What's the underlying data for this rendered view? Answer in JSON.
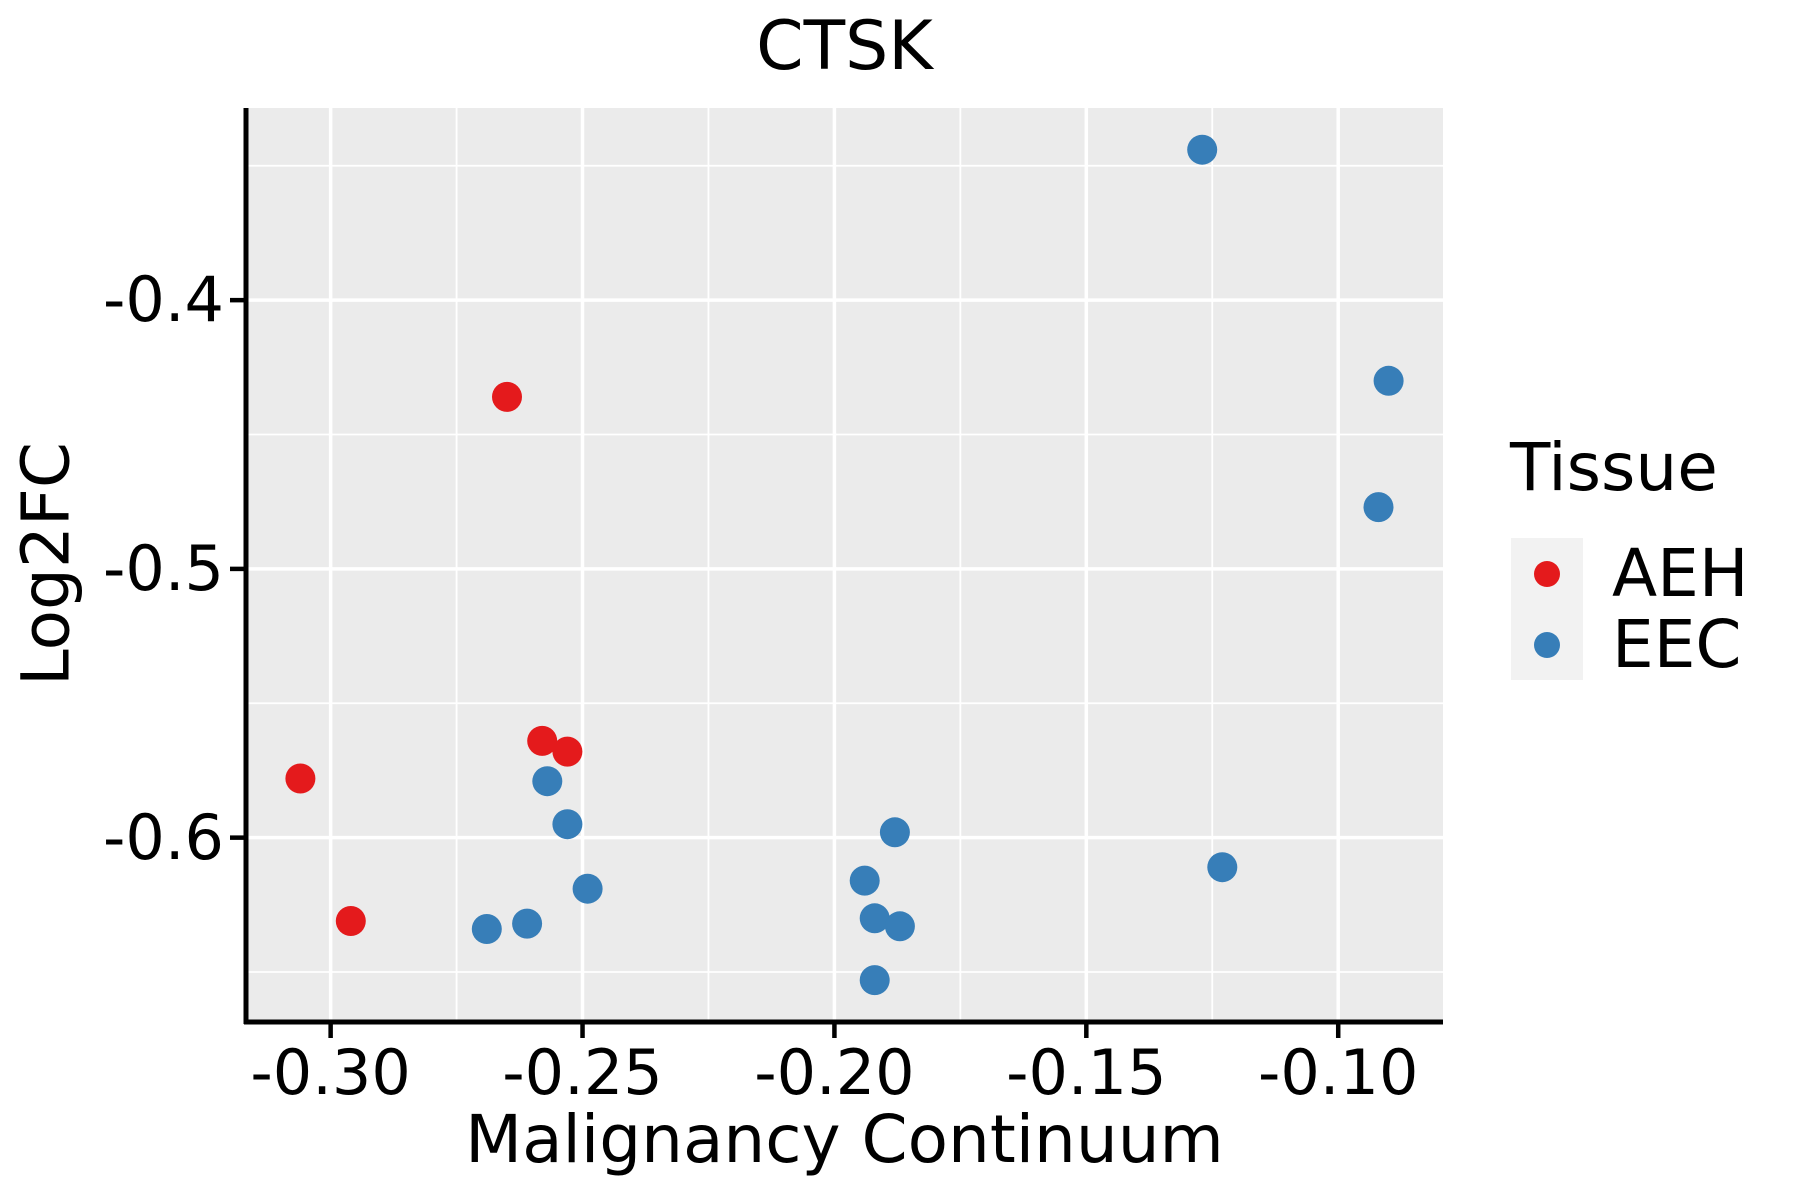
{
  "title": "CTSK",
  "x_axis": {
    "label": "Malignancy Continuum",
    "tick_labels": [
      "-0.30",
      "-0.25",
      "-0.20",
      "-0.15",
      "-0.10"
    ],
    "tick_values": [
      -0.3,
      -0.25,
      -0.2,
      -0.15,
      -0.1
    ],
    "minor_tick_values": [
      -0.275,
      -0.225,
      -0.175,
      -0.125
    ],
    "range": [
      -0.3168,
      -0.0792
    ]
  },
  "y_axis": {
    "label": "Log2FC",
    "tick_labels": [
      "-0.4",
      "-0.5",
      "-0.6"
    ],
    "tick_values": [
      -0.4,
      -0.5,
      -0.6
    ],
    "minor_tick_values": [
      -0.35,
      -0.45,
      -0.55,
      -0.65
    ],
    "range": [
      -0.6686,
      -0.3285
    ]
  },
  "legend": {
    "title": "Tissue",
    "entries": [
      {
        "label": "AEH",
        "color": "#E41A1C"
      },
      {
        "label": "EEC",
        "color": "#377EB8"
      }
    ]
  },
  "colors": {
    "panel_background": "#EBEBEB",
    "grid": "#FFFFFF",
    "axis_line": "#000000",
    "legend_key_background": "#F2F2F2",
    "text": "#000000",
    "page_background": "#FFFFFF"
  },
  "chart_data": {
    "type": "scatter",
    "title": "CTSK",
    "xlabel": "Malignancy Continuum",
    "ylabel": "Log2FC",
    "xlim": [
      -0.3168,
      -0.0792
    ],
    "ylim": [
      -0.6686,
      -0.3285
    ],
    "x_major_breaks": [
      -0.3,
      -0.25,
      -0.2,
      -0.15,
      -0.1
    ],
    "x_minor_breaks": [
      -0.275,
      -0.225,
      -0.175,
      -0.125
    ],
    "y_major_breaks": [
      -0.4,
      -0.5,
      -0.6
    ],
    "y_minor_breaks": [
      -0.35,
      -0.45,
      -0.55,
      -0.65
    ],
    "grid": true,
    "legend_position": "right",
    "legend_title": "Tissue",
    "series": [
      {
        "name": "AEH",
        "color": "#E41A1C",
        "points": [
          [
            -0.265,
            -0.436
          ],
          [
            -0.306,
            -0.578
          ],
          [
            -0.296,
            -0.631
          ],
          [
            -0.258,
            -0.564
          ],
          [
            -0.253,
            -0.568
          ]
        ]
      },
      {
        "name": "EEC",
        "color": "#377EB8",
        "points": [
          [
            -0.127,
            -0.344
          ],
          [
            -0.09,
            -0.43
          ],
          [
            -0.092,
            -0.477
          ],
          [
            -0.257,
            -0.579
          ],
          [
            -0.253,
            -0.595
          ],
          [
            -0.249,
            -0.619
          ],
          [
            -0.269,
            -0.634
          ],
          [
            -0.261,
            -0.632
          ],
          [
            -0.188,
            -0.598
          ],
          [
            -0.194,
            -0.616
          ],
          [
            -0.192,
            -0.63
          ],
          [
            -0.187,
            -0.633
          ],
          [
            -0.192,
            -0.653
          ],
          [
            -0.123,
            -0.611
          ]
        ]
      }
    ]
  }
}
